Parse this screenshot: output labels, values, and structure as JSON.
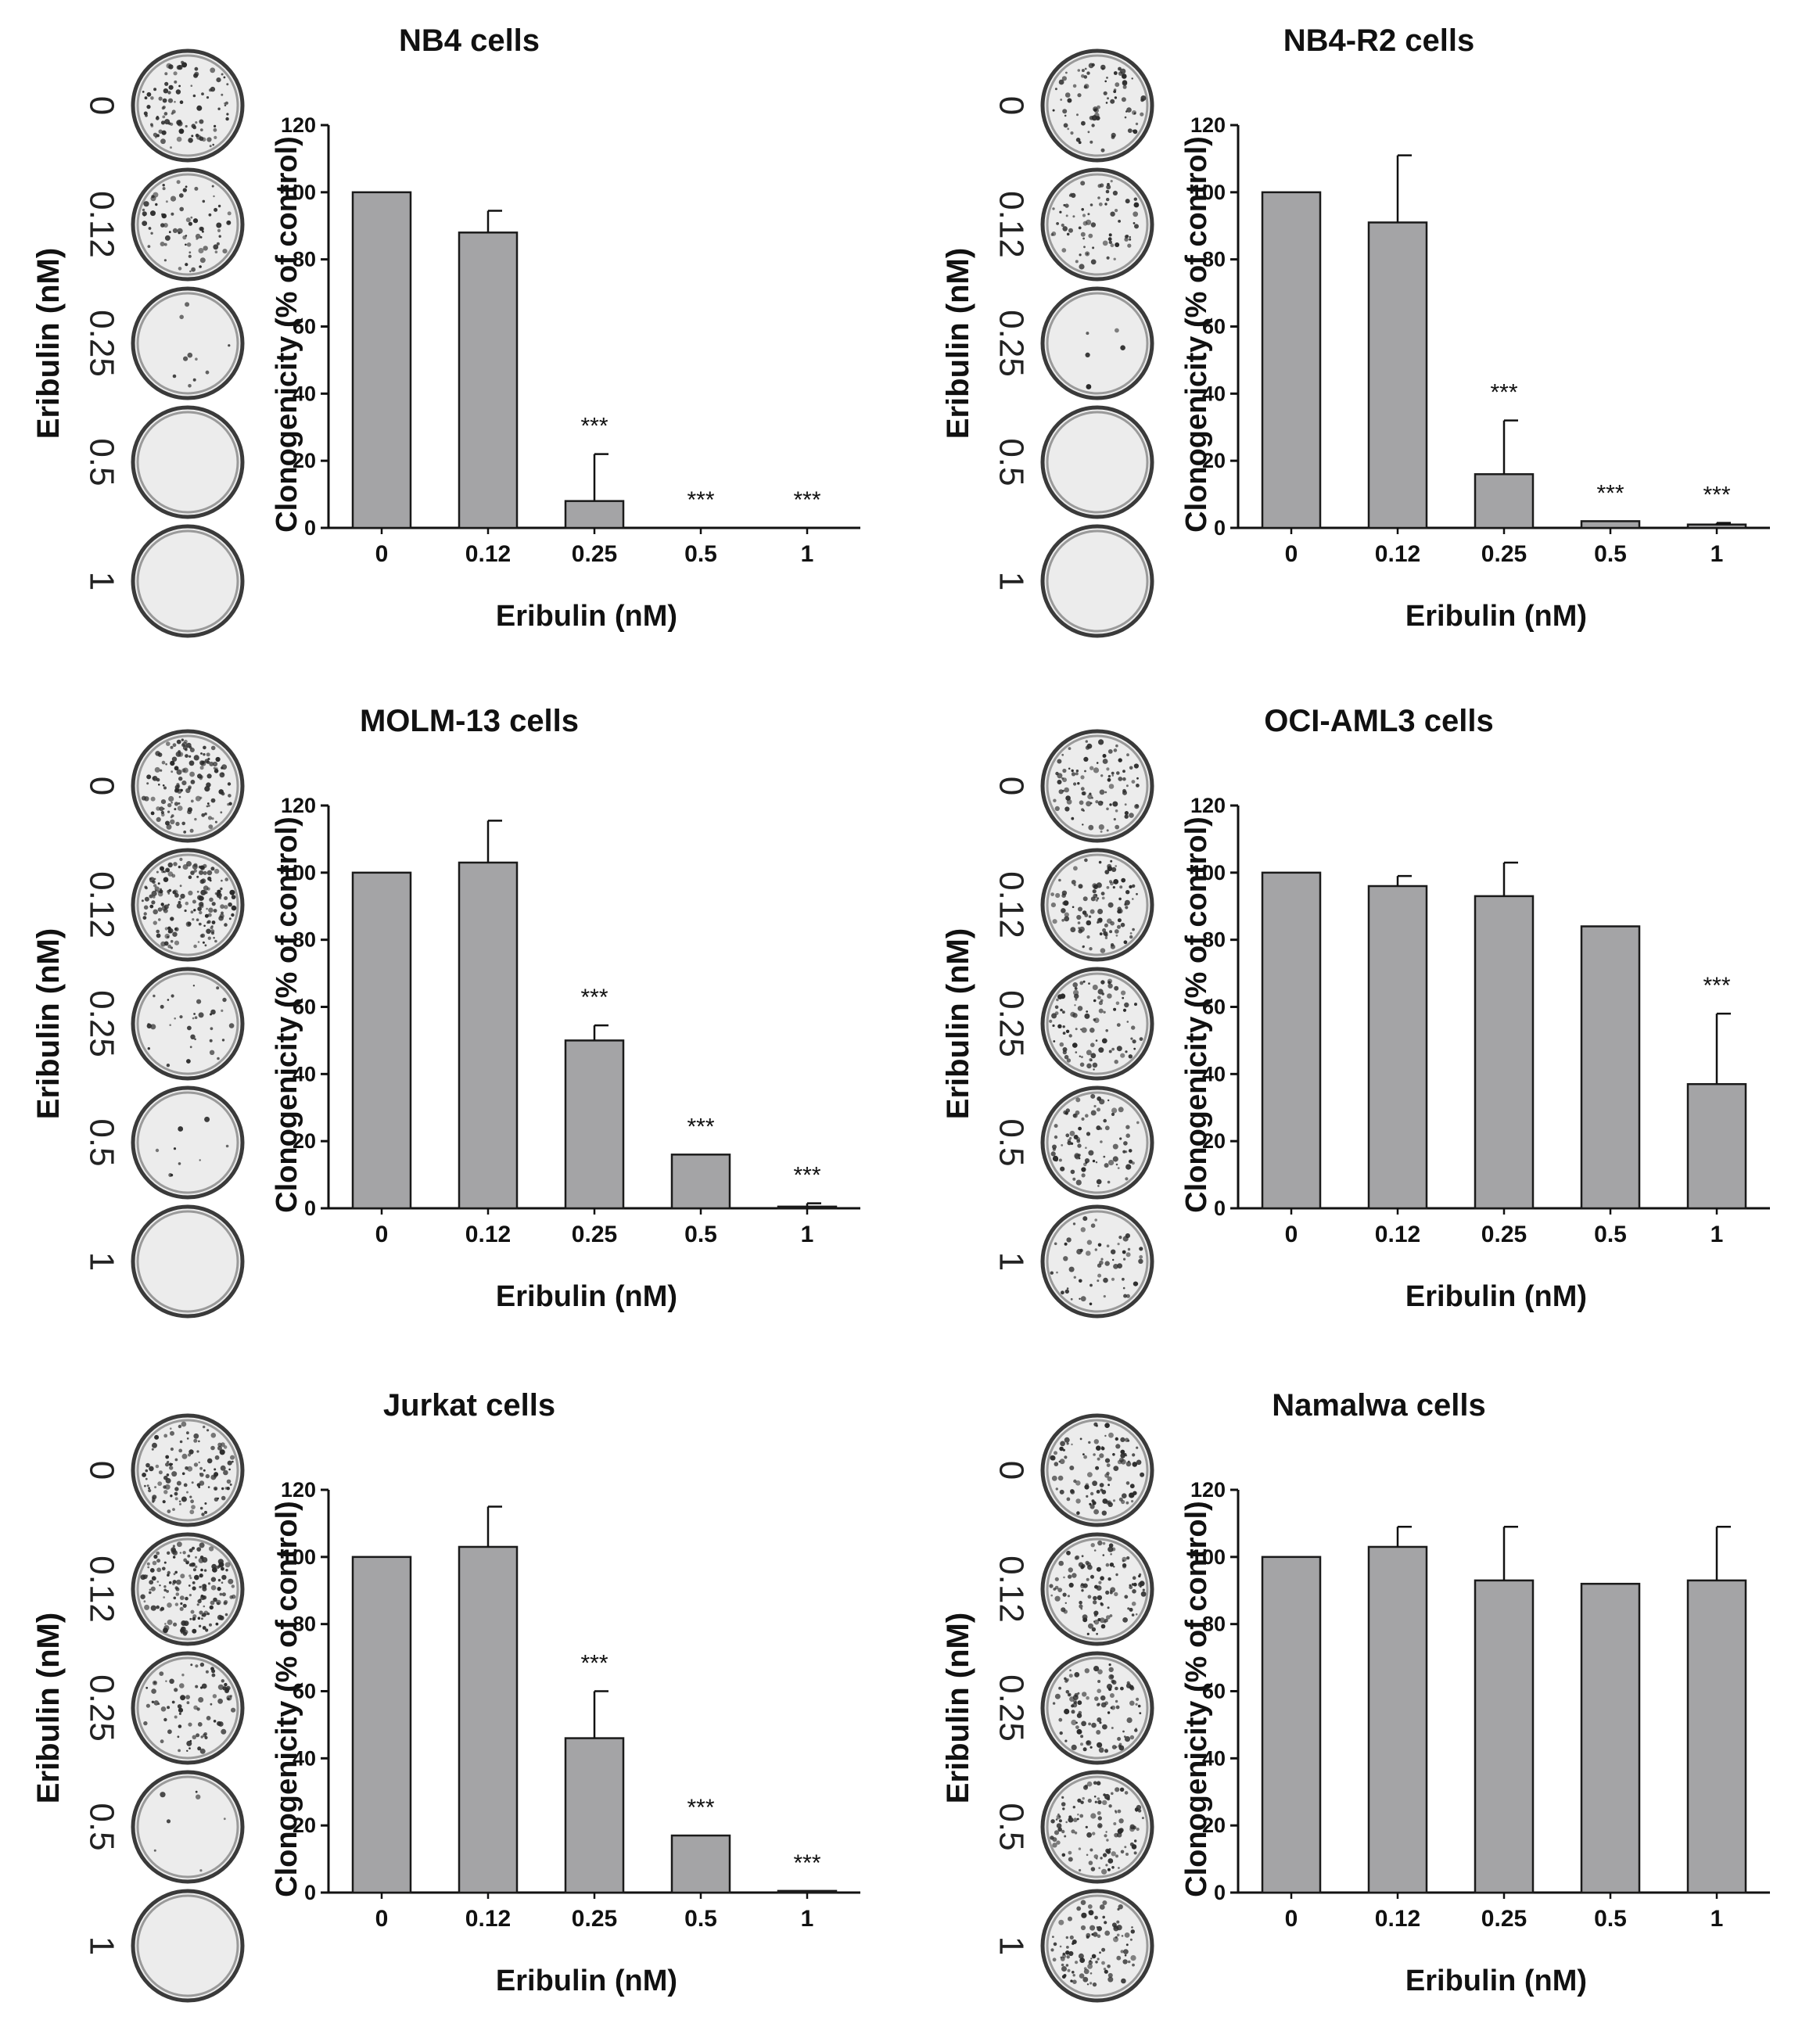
{
  "chart_data": [
    {
      "type": "bar",
      "title": "NB4 cells",
      "xlabel": "Eribulin (nM)",
      "ylabel": "Clonogenicity (% of control)",
      "ylim": [
        0,
        120
      ],
      "yticks": [
        0,
        20,
        40,
        60,
        80,
        100,
        120
      ],
      "categories": [
        "0",
        "0.12",
        "0.25",
        "0.5",
        "1"
      ],
      "values": [
        100,
        88,
        8,
        0,
        0
      ],
      "errors": [
        0,
        6.5,
        14,
        0,
        0
      ],
      "significance": [
        "",
        "",
        "***",
        "***",
        "***"
      ],
      "plate_label": "Eribulin (nM)",
      "plate_doses": [
        "0",
        "0.12",
        "0.25",
        "0.5",
        "1"
      ],
      "plate_colony_density": [
        0.55,
        0.45,
        0.06,
        0.0,
        0.0
      ]
    },
    {
      "type": "bar",
      "title": "NB4-R2 cells",
      "xlabel": "Eribulin (nM)",
      "ylabel": "Clonogenicity (% of control)",
      "ylim": [
        0,
        120
      ],
      "yticks": [
        0,
        20,
        40,
        60,
        80,
        100,
        120
      ],
      "categories": [
        "0",
        "0.12",
        "0.25",
        "0.5",
        "1"
      ],
      "values": [
        100,
        91,
        16,
        2,
        1
      ],
      "errors": [
        0,
        20,
        16,
        0,
        0.5
      ],
      "significance": [
        "",
        "",
        "***",
        "***",
        "***"
      ],
      "plate_label": "Eribulin (nM)",
      "plate_doses": [
        "0",
        "0.12",
        "0.25",
        "0.5",
        "1"
      ],
      "plate_colony_density": [
        0.45,
        0.42,
        0.03,
        0.0,
        0.0
      ]
    },
    {
      "type": "bar",
      "title": "MOLM-13 cells",
      "xlabel": "Eribulin (nM)",
      "ylabel": "Clonogenicity (% of control)",
      "ylim": [
        0,
        120
      ],
      "yticks": [
        0,
        20,
        40,
        60,
        80,
        100,
        120
      ],
      "categories": [
        "0",
        "0.12",
        "0.25",
        "0.5",
        "1"
      ],
      "values": [
        100,
        103,
        50,
        16,
        0.5
      ],
      "errors": [
        0,
        12.5,
        4.5,
        0,
        1
      ],
      "significance": [
        "",
        "",
        "***",
        "***",
        "***"
      ],
      "plate_label": "Eribulin (nM)",
      "plate_doses": [
        "0",
        "0.12",
        "0.25",
        "0.5",
        "1"
      ],
      "plate_colony_density": [
        0.8,
        1.0,
        0.2,
        0.05,
        0.0
      ]
    },
    {
      "type": "bar",
      "title": "OCI-AML3 cells",
      "xlabel": "Eribulin (nM)",
      "ylabel": "Clonogenicity (% of control)",
      "ylim": [
        0,
        120
      ],
      "yticks": [
        0,
        20,
        40,
        60,
        80,
        100,
        120
      ],
      "categories": [
        "0",
        "0.12",
        "0.25",
        "0.5",
        "1"
      ],
      "values": [
        100,
        96,
        93,
        84,
        37
      ],
      "errors": [
        0,
        3,
        10,
        0,
        21
      ],
      "significance": [
        "",
        "",
        "",
        "",
        "***"
      ],
      "plate_label": "Eribulin (nM)",
      "plate_doses": [
        "0",
        "0.12",
        "0.25",
        "0.5",
        "1"
      ],
      "plate_colony_density": [
        0.55,
        0.6,
        0.55,
        0.5,
        0.35
      ]
    },
    {
      "type": "bar",
      "title": "Jurkat cells",
      "xlabel": "Eribulin (nM)",
      "ylabel": "Clonogenicity (% of control)",
      "ylim": [
        0,
        120
      ],
      "yticks": [
        0,
        20,
        40,
        60,
        80,
        100,
        120
      ],
      "categories": [
        "0",
        "0.12",
        "0.25",
        "0.5",
        "1"
      ],
      "values": [
        100,
        103,
        46,
        17,
        0.5
      ],
      "errors": [
        0,
        12,
        14,
        0,
        0
      ],
      "significance": [
        "",
        "",
        "***",
        "***",
        "***"
      ],
      "plate_label": "Eribulin (nM)",
      "plate_doses": [
        "0",
        "0.12",
        "0.25",
        "0.5",
        "1"
      ],
      "plate_colony_density": [
        0.7,
        0.95,
        0.45,
        0.04,
        0.0
      ]
    },
    {
      "type": "bar",
      "title": "Namalwa cells",
      "xlabel": "Eribulin (nM)",
      "ylabel": "Clonogenicity (% of control)",
      "ylim": [
        0,
        120
      ],
      "yticks": [
        0,
        20,
        40,
        60,
        80,
        100,
        120
      ],
      "categories": [
        "0",
        "0.12",
        "0.25",
        "0.5",
        "1"
      ],
      "values": [
        100,
        103,
        93,
        92,
        93
      ],
      "errors": [
        0,
        6,
        16,
        0,
        16
      ],
      "significance": [
        "",
        "",
        "",
        "",
        ""
      ],
      "plate_label": "Eribulin (nM)",
      "plate_doses": [
        "0",
        "0.12",
        "0.25",
        "0.5",
        "1"
      ],
      "plate_colony_density": [
        0.6,
        0.65,
        0.6,
        0.65,
        0.6
      ]
    }
  ],
  "colors": {
    "bar_fill": "#a4a4a6",
    "bar_stroke": "#1a1a1a",
    "axis": "#111111",
    "plate_fill": "#ececec",
    "plate_rim": "#3a3a3a",
    "colony": "#2b2b2b"
  }
}
